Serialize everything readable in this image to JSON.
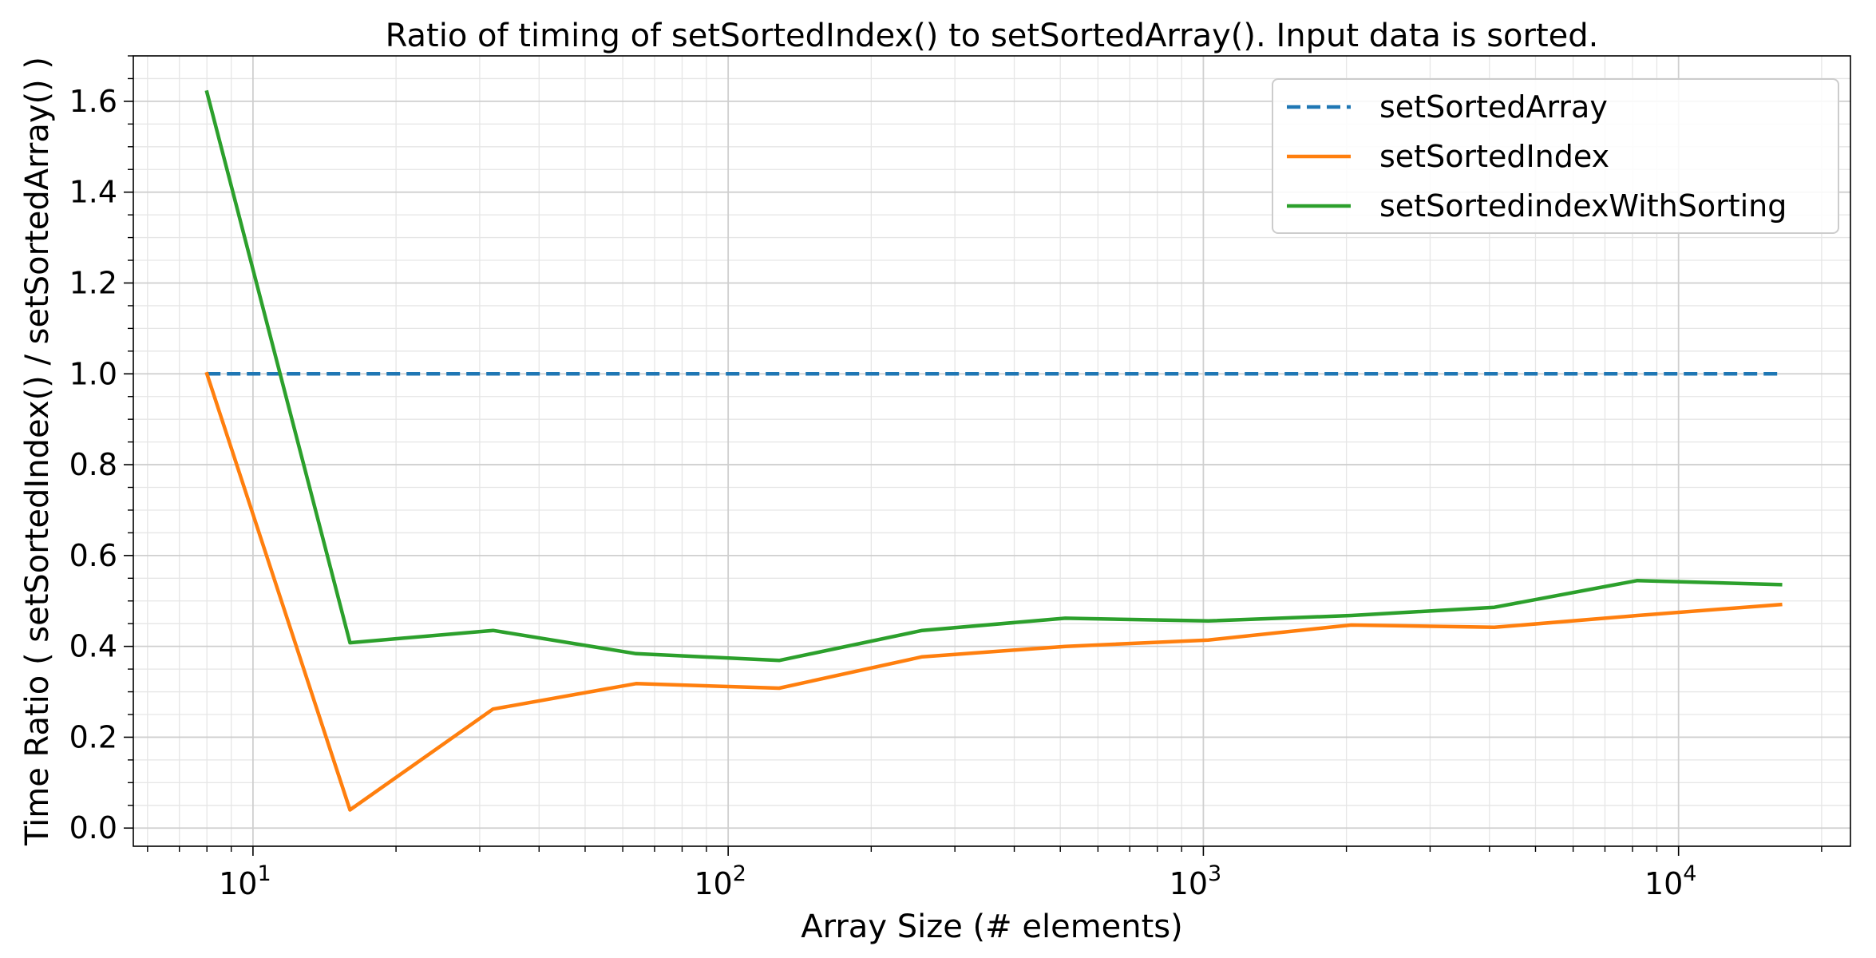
{
  "chart_data": {
    "type": "line",
    "title": "Ratio of timing of setSortedIndex() to setSortedArray(). Input data is sorted.",
    "xlabel": "Array Size (# elements)",
    "ylabel": "Time Ratio ( setSortedIndex() / setSortedArray() )",
    "xscale": "log",
    "xlim": [
      5.6,
      23000
    ],
    "ylim": [
      -0.04,
      1.7
    ],
    "grid": true,
    "minor_grid": true,
    "legend_position": "top-right",
    "x": [
      8,
      16,
      32,
      64,
      128,
      256,
      512,
      1024,
      2048,
      4096,
      8192,
      16384
    ],
    "x_ticks": [
      10,
      100,
      1000,
      10000
    ],
    "x_tick_labels": [
      {
        "base": "10",
        "exp": "1"
      },
      {
        "base": "10",
        "exp": "2"
      },
      {
        "base": "10",
        "exp": "3"
      },
      {
        "base": "10",
        "exp": "4"
      }
    ],
    "y_ticks": [
      0.0,
      0.2,
      0.4,
      0.6,
      0.8,
      1.0,
      1.2,
      1.4,
      1.6
    ],
    "y_tick_labels": [
      "0.0",
      "0.2",
      "0.4",
      "0.6",
      "0.8",
      "1.0",
      "1.2",
      "1.4",
      "1.6"
    ],
    "series": [
      {
        "name": "setSortedArray",
        "color": "#1f77b4",
        "style": "dashed",
        "values": [
          1.0,
          1.0,
          1.0,
          1.0,
          1.0,
          1.0,
          1.0,
          1.0,
          1.0,
          1.0,
          1.0,
          1.0
        ]
      },
      {
        "name": "setSortedIndex",
        "color": "#ff7f0e",
        "style": "solid",
        "values": [
          1.0,
          0.04,
          0.262,
          0.318,
          0.308,
          0.377,
          0.4,
          0.414,
          0.447,
          0.442,
          0.468,
          0.492
        ]
      },
      {
        "name": "setSortedindexWithSorting",
        "color": "#2ca02c",
        "style": "solid",
        "values": [
          1.62,
          0.408,
          0.435,
          0.384,
          0.369,
          0.435,
          0.462,
          0.456,
          0.468,
          0.486,
          0.545,
          0.536
        ]
      }
    ]
  }
}
